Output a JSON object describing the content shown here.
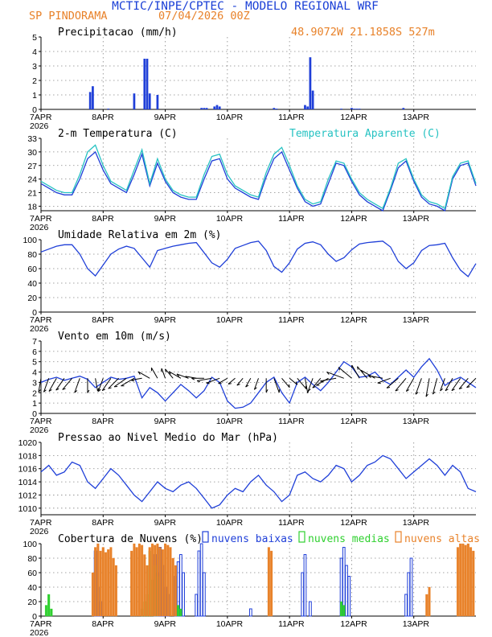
{
  "header": {
    "title": "MCTIC/INPE/CPTEC - MODELO REGIONAL WRF",
    "location": "SP PINDORAMA",
    "run": "07/04/2026 00Z",
    "coords": "48.9072W 21.1858S 527m"
  },
  "colors": {
    "title": "#1a3fd6",
    "orange": "#e8822a",
    "cyan": "#26c2c2",
    "blue": "#1f3fd8",
    "green": "#2fd02f",
    "black": "#000000",
    "grid": "#888888"
  },
  "x_axis": {
    "days": [
      "7APR",
      "8APR",
      "9APR",
      "10APR",
      "11APR",
      "12APR",
      "13APR"
    ],
    "year": "2026",
    "range_hours": [
      0,
      168
    ]
  },
  "chart_data": [
    {
      "id": "precip",
      "type": "bar",
      "title": "Precipitacao (mm/h)",
      "ylim": [
        0,
        5
      ],
      "yticks": [
        "0",
        "1",
        "2",
        "3",
        "4",
        "5"
      ],
      "grid": true,
      "x_hours": [
        19,
        20,
        26,
        36,
        40,
        41,
        42,
        45,
        62,
        63,
        64,
        67,
        68,
        69,
        90,
        91,
        102,
        103,
        104,
        105,
        116,
        120,
        121,
        122,
        123,
        140
      ],
      "values": [
        1.2,
        1.6,
        0.05,
        1.1,
        3.5,
        3.5,
        1.1,
        1.0,
        0.1,
        0.1,
        0.1,
        0.2,
        0.3,
        0.2,
        0.1,
        0.05,
        0.3,
        0.2,
        3.6,
        1.3,
        0.05,
        0.1,
        0.05,
        0.05,
        0.05,
        0.1
      ]
    },
    {
      "id": "temperature",
      "type": "line",
      "title": "2-m Temperatura (C)",
      "legend": "Temperatura Aparente (C)",
      "legend_position": "top-right",
      "ylim": [
        17,
        33
      ],
      "yticks": [
        "18",
        "21",
        "24",
        "27",
        "30",
        "33"
      ],
      "grid": true,
      "x_hours": [
        0,
        3,
        6,
        9,
        12,
        15,
        18,
        21,
        24,
        27,
        30,
        33,
        36,
        39,
        42,
        45,
        48,
        51,
        54,
        57,
        60,
        63,
        66,
        69,
        72,
        75,
        78,
        81,
        84,
        87,
        90,
        93,
        96,
        99,
        102,
        105,
        108,
        111,
        114,
        117,
        120,
        123,
        126,
        129,
        132,
        135,
        138,
        141,
        144,
        147,
        150,
        153,
        156,
        159,
        162,
        165,
        168
      ],
      "series": [
        {
          "name": "2-m Temperatura (C)",
          "color": "blue",
          "values": [
            23.0,
            22.0,
            21.0,
            20.5,
            20.5,
            24.0,
            28.5,
            30.0,
            26.0,
            23.0,
            22.0,
            21.0,
            25.0,
            29.5,
            22.5,
            27.5,
            23.5,
            21.0,
            20.0,
            19.5,
            19.5,
            24.0,
            28.0,
            28.5,
            24.0,
            22.0,
            21.0,
            20.0,
            19.5,
            24.5,
            28.5,
            30.0,
            26.0,
            22.0,
            19.0,
            18.0,
            18.5,
            23.0,
            27.5,
            27.0,
            23.5,
            20.5,
            19.0,
            18.0,
            17.0,
            21.5,
            26.5,
            28.0,
            23.5,
            20.0,
            18.5,
            18.0,
            17.0,
            24.0,
            27.0,
            27.5,
            22.5
          ]
        },
        {
          "name": "Temperatura Aparente (C)",
          "color": "cyan",
          "values": [
            23.5,
            22.5,
            21.5,
            21.0,
            21.0,
            25.0,
            30.0,
            31.5,
            27.0,
            23.5,
            22.5,
            21.5,
            26.0,
            30.5,
            23.0,
            28.5,
            24.0,
            21.5,
            20.5,
            20.0,
            20.0,
            25.0,
            29.0,
            29.5,
            25.0,
            22.5,
            21.5,
            20.5,
            20.0,
            25.5,
            29.5,
            31.0,
            27.0,
            22.5,
            19.5,
            18.5,
            19.0,
            24.0,
            28.0,
            27.5,
            24.0,
            21.0,
            19.5,
            18.5,
            17.5,
            22.0,
            27.5,
            28.5,
            24.0,
            20.5,
            19.0,
            18.5,
            17.5,
            24.5,
            27.5,
            28.0,
            23.0
          ]
        }
      ]
    },
    {
      "id": "humidity",
      "type": "line",
      "title": "Umidade Relativa em 2m (%)",
      "ylim": [
        0,
        100
      ],
      "yticks": [
        "0",
        "20",
        "40",
        "60",
        "80",
        "100"
      ],
      "grid": true,
      "x_hours": [
        0,
        3,
        6,
        9,
        12,
        15,
        18,
        21,
        24,
        27,
        30,
        33,
        36,
        39,
        42,
        45,
        48,
        51,
        54,
        57,
        60,
        63,
        66,
        69,
        72,
        75,
        78,
        81,
        84,
        87,
        90,
        93,
        96,
        99,
        102,
        105,
        108,
        111,
        114,
        117,
        120,
        123,
        126,
        129,
        132,
        135,
        138,
        141,
        144,
        147,
        150,
        153,
        156,
        159,
        162,
        165,
        168
      ],
      "series": [
        {
          "name": "Umidade Relativa em 2m (%)",
          "color": "blue",
          "values": [
            83,
            87,
            91,
            93,
            93,
            80,
            60,
            50,
            65,
            80,
            87,
            91,
            88,
            75,
            62,
            85,
            88,
            91,
            93,
            95,
            96,
            82,
            68,
            62,
            73,
            88,
            92,
            96,
            98,
            85,
            63,
            55,
            68,
            87,
            95,
            97,
            93,
            80,
            70,
            75,
            86,
            94,
            96,
            97,
            98,
            90,
            70,
            60,
            68,
            85,
            92,
            93,
            95,
            75,
            58,
            49,
            67
          ]
        }
      ]
    },
    {
      "id": "wind",
      "type": "line",
      "title": "Vento em 10m (m/s)",
      "ylim": [
        0,
        7
      ],
      "yticks": [
        "0",
        "1",
        "2",
        "3",
        "4",
        "5",
        "6",
        "7"
      ],
      "grid": true,
      "x_hours": [
        0,
        3,
        6,
        9,
        12,
        15,
        18,
        21,
        24,
        27,
        30,
        33,
        36,
        39,
        42,
        45,
        48,
        51,
        54,
        57,
        60,
        63,
        66,
        69,
        72,
        75,
        78,
        81,
        84,
        87,
        90,
        93,
        96,
        99,
        102,
        105,
        108,
        111,
        114,
        117,
        120,
        123,
        126,
        129,
        132,
        135,
        138,
        141,
        144,
        147,
        150,
        153,
        156,
        159,
        162,
        165,
        168
      ],
      "series": [
        {
          "name": "Vento em 10m (m/s)",
          "color": "blue",
          "values": [
            3.0,
            3.3,
            3.5,
            3.2,
            3.4,
            3.6,
            3.3,
            2.5,
            3.0,
            3.5,
            3.3,
            3.4,
            3.6,
            1.5,
            2.5,
            2.0,
            1.2,
            2.0,
            2.8,
            2.2,
            1.5,
            2.2,
            3.5,
            3.0,
            1.2,
            0.5,
            0.6,
            1.0,
            2.0,
            3.0,
            3.5,
            2.0,
            1.0,
            3.0,
            3.5,
            2.8,
            2.2,
            3.0,
            4.0,
            5.0,
            4.5,
            3.5,
            3.6,
            4.0,
            3.2,
            2.8,
            3.5,
            4.2,
            3.5,
            4.5,
            5.3,
            4.2,
            2.7,
            3.2,
            3.5,
            3.0,
            2.5
          ]
        }
      ],
      "barb_dirs_deg": [
        190,
        200,
        210,
        215,
        220,
        200,
        180,
        170,
        200,
        215,
        225,
        235,
        240,
        260,
        300,
        330,
        340,
        320,
        300,
        290,
        280,
        270,
        260,
        250,
        240,
        230,
        220,
        210,
        200,
        180,
        160,
        140,
        130,
        140,
        170,
        200,
        220,
        240,
        260,
        290,
        310,
        330,
        320,
        300,
        280,
        250,
        230,
        220,
        210,
        200,
        190,
        195,
        200,
        210,
        215,
        220,
        225
      ]
    },
    {
      "id": "pressure",
      "type": "line",
      "title": "Pressao ao Nivel Medio do Mar (hPa)",
      "ylim": [
        1009,
        1020
      ],
      "yticks": [
        "1010",
        "1012",
        "1014",
        "1016",
        "1018",
        "1020"
      ],
      "grid": true,
      "x_hours": [
        0,
        3,
        6,
        9,
        12,
        15,
        18,
        21,
        24,
        27,
        30,
        33,
        36,
        39,
        42,
        45,
        48,
        51,
        54,
        57,
        60,
        63,
        66,
        69,
        72,
        75,
        78,
        81,
        84,
        87,
        90,
        93,
        96,
        99,
        102,
        105,
        108,
        111,
        114,
        117,
        120,
        123,
        126,
        129,
        132,
        135,
        138,
        141,
        144,
        147,
        150,
        153,
        156,
        159,
        162,
        165,
        168
      ],
      "series": [
        {
          "name": "Pressao ao Nivel Medio do Mar (hPa)",
          "color": "blue",
          "values": [
            1015.5,
            1016.5,
            1015.0,
            1015.5,
            1017.0,
            1016.5,
            1014.0,
            1013.0,
            1014.5,
            1016.0,
            1015.0,
            1013.5,
            1012.0,
            1011.0,
            1012.5,
            1014.0,
            1013.0,
            1012.5,
            1013.5,
            1014.0,
            1013.0,
            1011.5,
            1010.0,
            1010.5,
            1012.0,
            1013.0,
            1012.5,
            1014.0,
            1015.0,
            1013.5,
            1012.5,
            1011.0,
            1012.0,
            1015.0,
            1015.5,
            1014.5,
            1014.0,
            1015.0,
            1016.5,
            1016.0,
            1014.0,
            1015.0,
            1016.5,
            1017.0,
            1018.0,
            1017.5,
            1016.0,
            1014.5,
            1015.5,
            1016.5,
            1017.5,
            1016.5,
            1015.0,
            1016.5,
            1015.5,
            1013.0,
            1012.5
          ]
        }
      ]
    },
    {
      "id": "clouds",
      "type": "bar",
      "title": "Cobertura de Nuvens (%)",
      "legend_position": "top",
      "ylim": [
        0,
        100
      ],
      "yticks": [
        "0",
        "20",
        "40",
        "60",
        "80",
        "100"
      ],
      "grid": true,
      "series": [
        {
          "name": "nuvens baixas",
          "color": "blue",
          "x_hours": [
            21,
            22,
            23,
            44,
            45,
            46,
            47,
            48,
            49,
            52,
            53,
            54,
            55,
            60,
            61,
            62,
            63,
            81,
            101,
            102,
            104,
            116,
            117,
            118,
            119,
            141,
            142,
            143
          ],
          "values": [
            90,
            40,
            20,
            85,
            60,
            95,
            70,
            40,
            30,
            55,
            75,
            85,
            60,
            30,
            90,
            100,
            60,
            10,
            60,
            85,
            20,
            80,
            95,
            70,
            55,
            30,
            60,
            80
          ]
        },
        {
          "name": "nuvens medias",
          "color": "green",
          "x_hours": [
            2,
            3,
            4,
            39,
            40,
            41,
            42,
            43,
            44,
            45,
            53,
            54,
            116,
            117
          ],
          "values": [
            15,
            30,
            10,
            10,
            20,
            30,
            90,
            50,
            70,
            55,
            15,
            10,
            20,
            15
          ]
        },
        {
          "name": "nuvens altas",
          "color": "orange",
          "x_hours": [
            20,
            21,
            22,
            23,
            24,
            25,
            26,
            27,
            28,
            29,
            35,
            36,
            37,
            38,
            39,
            40,
            41,
            42,
            43,
            44,
            45,
            46,
            47,
            48,
            49,
            50,
            51,
            52,
            88,
            89,
            149,
            150,
            161,
            162,
            163,
            164,
            165,
            166,
            167
          ],
          "values": [
            60,
            95,
            100,
            90,
            95,
            88,
            92,
            95,
            80,
            70,
            90,
            100,
            95,
            100,
            98,
            85,
            70,
            95,
            100,
            98,
            100,
            95,
            92,
            100,
            98,
            95,
            80,
            70,
            95,
            90,
            30,
            40,
            95,
            100,
            100,
            98,
            100,
            95,
            90
          ]
        }
      ]
    }
  ]
}
